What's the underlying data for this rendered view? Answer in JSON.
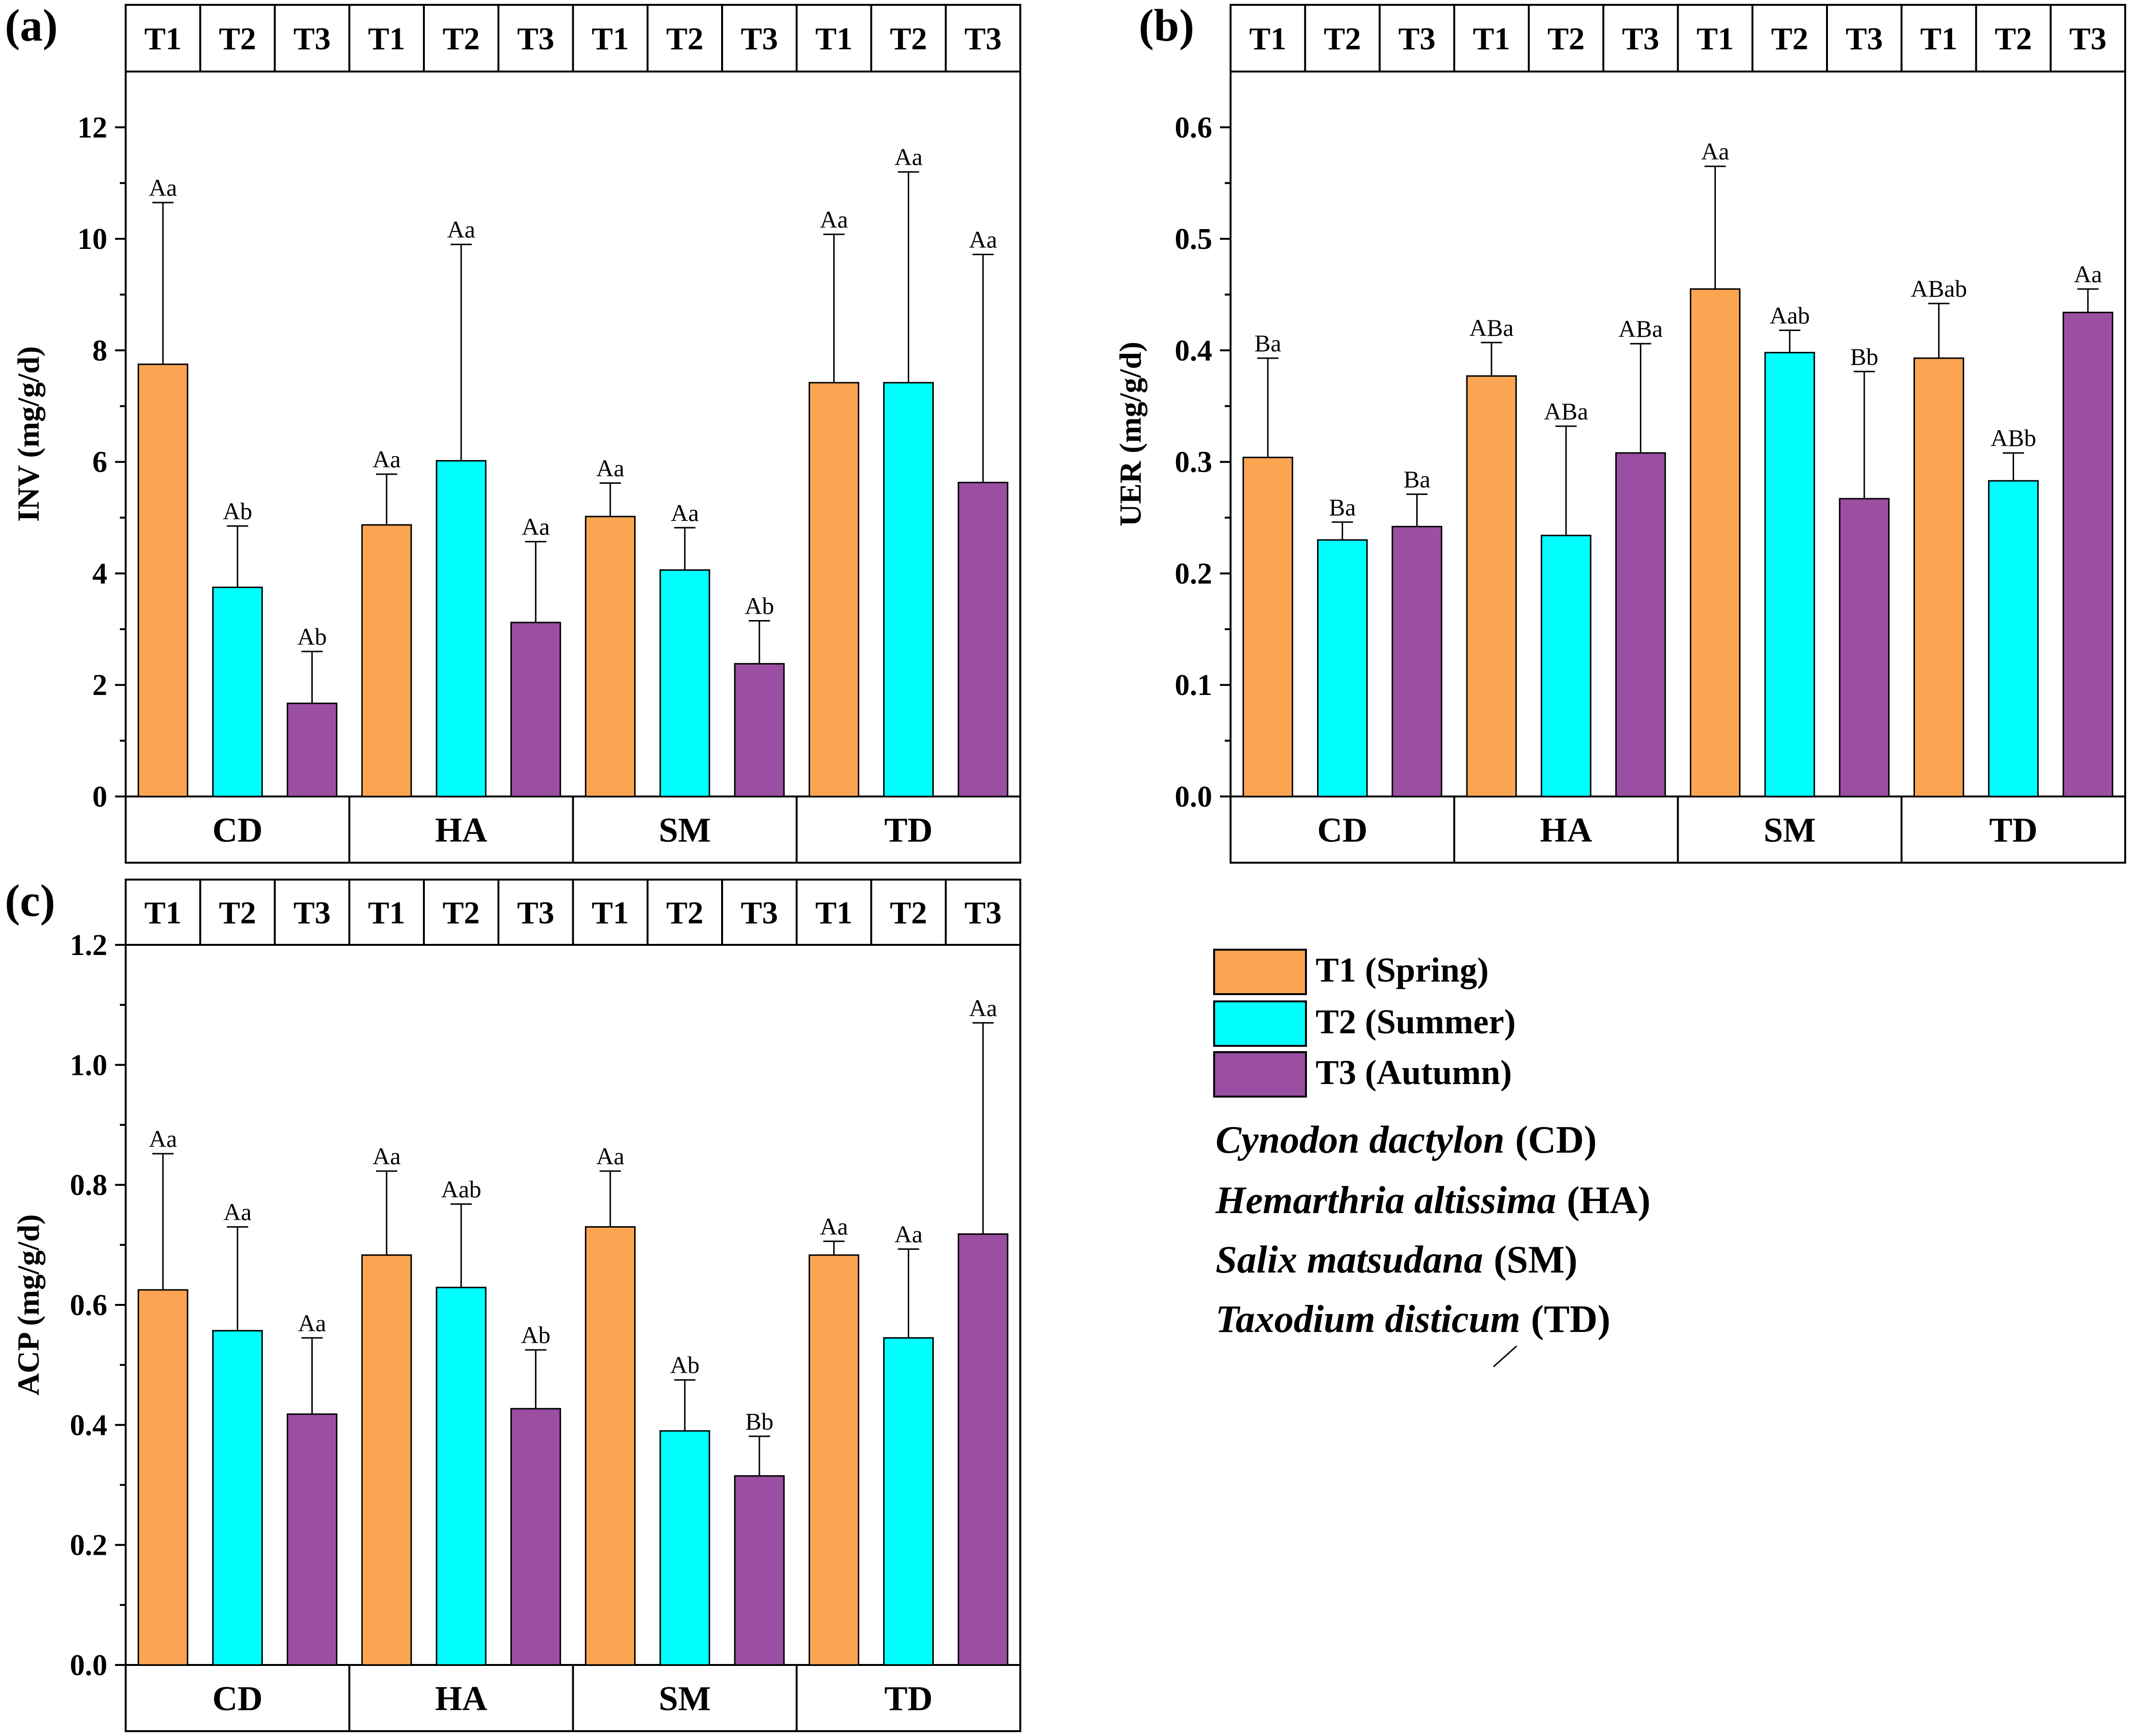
{
  "colors": {
    "T1": "#FBA552",
    "T2": "#00FFFF",
    "T3": "#9A4FA2",
    "axis": "#000000"
  },
  "legend": {
    "items": [
      {
        "key": "T1",
        "label": "T1 (Spring)"
      },
      {
        "key": "T2",
        "label": "T2 (Summer)"
      },
      {
        "key": "T3",
        "label": "T3 (Autumn)"
      }
    ]
  },
  "species": [
    {
      "name": "Cynodon dactylon",
      "abbr": "(CD)"
    },
    {
      "name": "Hemarthria altissima",
      "abbr": "(HA)"
    },
    {
      "name": "Salix matsudana",
      "abbr": "(SM)"
    },
    {
      "name": "Taxodium disticum",
      "abbr": "(TD)"
    }
  ],
  "chart_data": [
    {
      "type": "bar",
      "panel": "(a)",
      "ylabel": "INV (mg/g/d)",
      "ylim": [
        0,
        13
      ],
      "yticks": [
        0,
        2,
        4,
        6,
        8,
        10,
        12
      ],
      "tick_format": "int",
      "groups": [
        "CD",
        "HA",
        "SM",
        "TD"
      ],
      "top_labels": [
        "T1",
        "T2",
        "T3",
        "T1",
        "T2",
        "T3",
        "T1",
        "T2",
        "T3",
        "T1",
        "T2",
        "T3"
      ],
      "series": [
        {
          "name": "T1 (Spring)",
          "values": [
            7.75,
            4.87,
            5.02,
            7.42
          ],
          "errors": [
            10.65,
            5.78,
            5.62,
            10.08
          ],
          "letters": [
            "Aa",
            "Aa",
            "Aa",
            "Aa"
          ]
        },
        {
          "name": "T2 (Summer)",
          "values": [
            3.75,
            6.02,
            4.06,
            7.42
          ],
          "errors": [
            4.85,
            9.9,
            4.82,
            11.2
          ],
          "letters": [
            "Ab",
            "Aa",
            "Aa",
            "Aa"
          ]
        },
        {
          "name": "T3 (Autumn)",
          "values": [
            1.67,
            3.12,
            2.38,
            5.63
          ],
          "errors": [
            2.6,
            4.57,
            3.15,
            9.72
          ],
          "letters": [
            "Ab",
            "Aa",
            "Ab",
            "Aa"
          ]
        }
      ]
    },
    {
      "type": "bar",
      "panel": "(b)",
      "ylabel": "UER (mg/g/d)",
      "ylim": [
        0,
        0.65
      ],
      "yticks": [
        0,
        0.1,
        0.2,
        0.3,
        0.4,
        0.5,
        0.6
      ],
      "tick_format": "1",
      "groups": [
        "CD",
        "HA",
        "SM",
        "TD"
      ],
      "top_labels": [
        "T1",
        "T2",
        "T3",
        "T1",
        "T2",
        "T3",
        "T1",
        "T2",
        "T3",
        "T1",
        "T2",
        "T3"
      ],
      "series": [
        {
          "name": "T1 (Spring)",
          "values": [
            0.304,
            0.377,
            0.455,
            0.393
          ],
          "errors": [
            0.393,
            0.407,
            0.565,
            0.442
          ],
          "letters": [
            "Ba",
            "ABa",
            "Aa",
            "ABab"
          ]
        },
        {
          "name": "T2 (Summer)",
          "values": [
            0.23,
            0.234,
            0.398,
            0.283
          ],
          "errors": [
            0.246,
            0.332,
            0.418,
            0.308
          ],
          "letters": [
            "Ba",
            "ABa",
            "Aab",
            "ABb"
          ]
        },
        {
          "name": "T3 (Autumn)",
          "values": [
            0.242,
            0.308,
            0.267,
            0.434
          ],
          "errors": [
            0.271,
            0.406,
            0.381,
            0.455
          ],
          "letters": [
            "Ba",
            "ABa",
            "Bb",
            "Aa"
          ]
        }
      ]
    },
    {
      "type": "bar",
      "panel": "(c)",
      "ylabel": "ACP (mg/g/d)",
      "ylim": [
        0,
        1.2
      ],
      "yticks": [
        0,
        0.2,
        0.4,
        0.6,
        0.8,
        1.0,
        1.2
      ],
      "tick_format": "1",
      "groups": [
        "CD",
        "HA",
        "SM",
        "TD"
      ],
      "top_labels": [
        "T1",
        "T2",
        "T3",
        "T1",
        "T2",
        "T3",
        "T1",
        "T2",
        "T3",
        "T1",
        "T2",
        "T3"
      ],
      "series": [
        {
          "name": "T1 (Spring)",
          "values": [
            0.625,
            0.683,
            0.73,
            0.683
          ],
          "errors": [
            0.852,
            0.823,
            0.823,
            0.706
          ],
          "letters": [
            "Aa",
            "Aa",
            "Aa",
            "Aa"
          ]
        },
        {
          "name": "T2 (Summer)",
          "values": [
            0.557,
            0.629,
            0.39,
            0.545
          ],
          "errors": [
            0.73,
            0.768,
            0.475,
            0.693
          ],
          "letters": [
            "Aa",
            "Aab",
            "Ab",
            "Aa"
          ]
        },
        {
          "name": "T3 (Autumn)",
          "values": [
            0.418,
            0.427,
            0.315,
            0.718
          ],
          "errors": [
            0.545,
            0.525,
            0.381,
            1.07
          ],
          "letters": [
            "Aa",
            "Ab",
            "Bb",
            "Aa"
          ]
        }
      ]
    }
  ]
}
